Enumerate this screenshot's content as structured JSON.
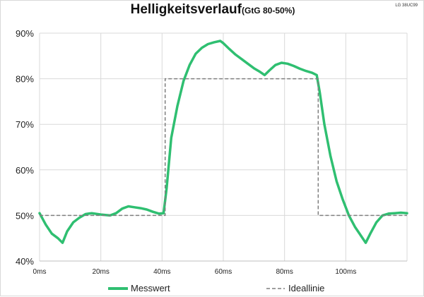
{
  "title": "Helligkeitsverlauf",
  "subtitle": "(GtG 80-50%)",
  "model_label": "LG 38UC99",
  "colors": {
    "measured": "#2fbf71",
    "ideal": "#7f7f7f",
    "grid": "#d9d9d9"
  },
  "legend": {
    "measured_label": "Messwert",
    "ideal_label": "Ideallinie"
  },
  "chart_data": {
    "type": "line",
    "title": "Helligkeitsverlauf",
    "subtitle": "(GtG 80-50%)",
    "xlabel": "",
    "ylabel": "",
    "xlim": [
      0,
      120
    ],
    "ylim": [
      40,
      90
    ],
    "x_tick_labels": [
      "0ms",
      "20ms",
      "40ms",
      "60ms",
      "80ms",
      "100ms"
    ],
    "y_tick_labels": [
      "40%",
      "50%",
      "60%",
      "70%",
      "80%",
      "90%"
    ],
    "grid": true,
    "legend_position": "bottom",
    "series": [
      {
        "name": "Messwert",
        "style": "solid",
        "x": [
          0,
          2,
          4,
          6,
          7.5,
          9,
          11,
          13,
          15,
          17,
          20,
          23,
          25,
          27,
          29,
          31,
          33,
          35,
          37,
          39,
          40.5,
          41.5,
          43,
          45,
          47,
          49,
          51,
          53,
          55,
          57,
          59,
          60,
          62,
          64,
          66,
          68,
          70,
          72,
          73.5,
          75,
          77,
          79,
          81,
          83,
          85,
          87,
          89,
          90.5,
          91.5,
          93,
          95,
          97,
          99,
          101,
          103,
          105,
          106.5,
          108,
          110,
          112,
          114,
          116,
          118,
          120
        ],
        "y": [
          50.5,
          48,
          46,
          45,
          44,
          46.5,
          48.5,
          49.5,
          50.3,
          50.5,
          50.2,
          50,
          50.5,
          51.5,
          52,
          51.8,
          51.6,
          51.3,
          50.8,
          50.4,
          50.5,
          56,
          67,
          74,
          79.5,
          83,
          85.5,
          86.8,
          87.6,
          88,
          88.3,
          87.8,
          86.5,
          85.3,
          84.3,
          83.3,
          82.3,
          81.5,
          80.8,
          81.8,
          83,
          83.5,
          83.3,
          82.8,
          82.2,
          81.7,
          81.3,
          80.8,
          77,
          70,
          63,
          57.5,
          53.5,
          50,
          47.5,
          45.5,
          44,
          46,
          48.5,
          50,
          50.4,
          50.5,
          50.6,
          50.5
        ]
      },
      {
        "name": "Ideallinie",
        "style": "dashed",
        "x": [
          0,
          41,
          41,
          91,
          91,
          120
        ],
        "y": [
          50,
          50,
          80,
          80,
          50,
          50
        ]
      }
    ]
  }
}
